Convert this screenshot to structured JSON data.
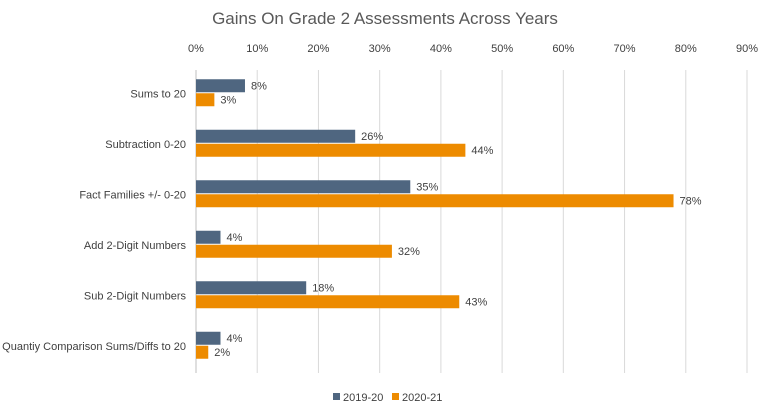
{
  "chart_data": {
    "type": "bar",
    "orientation": "horizontal",
    "title": "Gains On Grade 2 Assessments Across Years",
    "categories": [
      "Sums to 20",
      "Subtraction 0-20",
      "Fact Families +/- 0-20",
      "Add 2-Digit Numbers",
      "Sub 2-Digit Numbers",
      "Quantiy Comparison Sums/Diffs to 20"
    ],
    "series": [
      {
        "name": "2019-20",
        "color": "#4f6680",
        "values": [
          8,
          26,
          35,
          4,
          18,
          4
        ]
      },
      {
        "name": "2020-21",
        "color": "#ed8b00",
        "values": [
          3,
          44,
          78,
          32,
          43,
          2
        ]
      }
    ],
    "xlim": [
      0,
      90
    ],
    "xticks": [
      0,
      10,
      20,
      30,
      40,
      50,
      60,
      70,
      80,
      90
    ],
    "tick_suffix": "%",
    "xlabel": "",
    "ylabel": "",
    "grid": true,
    "legend": "bottom",
    "axis_position": "top"
  }
}
